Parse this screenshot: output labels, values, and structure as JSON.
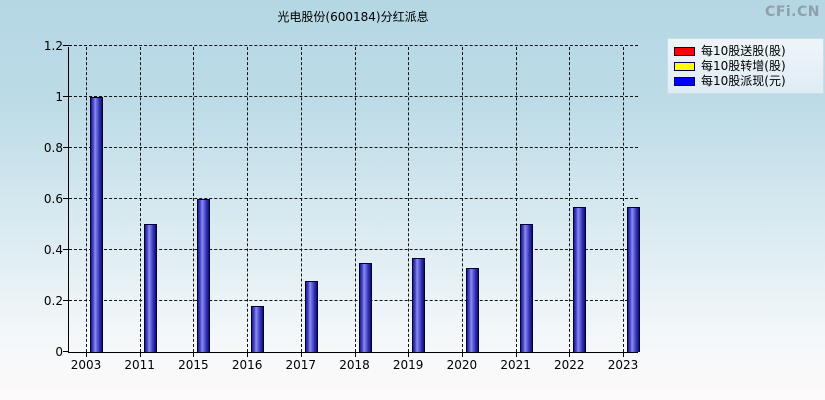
{
  "title": "光电股份(600184)分红派息",
  "watermark": "CFi.CN",
  "legend": [
    {
      "label": "每10股送股(股)",
      "color": "#ff0000"
    },
    {
      "label": "每10股转增(股)",
      "color": "#ffff00"
    },
    {
      "label": "每10股派现(元)",
      "color": "#0000ff"
    }
  ],
  "chart_data": {
    "type": "bar",
    "title": "光电股份(600184)分红派息",
    "categories": [
      "2003",
      "2011",
      "2015",
      "2016",
      "2017",
      "2018",
      "2019",
      "2020",
      "2021",
      "2022",
      "2023"
    ],
    "series": [
      {
        "name": "每10股送股(股)",
        "color": "#ff0000",
        "values": [
          0,
          0,
          0,
          0,
          0,
          0,
          0,
          0,
          0,
          0,
          0
        ]
      },
      {
        "name": "每10股转增(股)",
        "color": "#ffff00",
        "values": [
          0,
          0,
          0,
          0,
          0,
          0,
          0,
          0,
          0,
          0,
          0
        ]
      },
      {
        "name": "每10股派现(元)",
        "color": "#0000ff",
        "values": [
          1.0,
          0.5,
          0.6,
          0.18,
          0.28,
          0.35,
          0.37,
          0.33,
          0.5,
          0.57,
          0.57
        ]
      }
    ],
    "xlabel": "",
    "ylabel": "",
    "ylim": [
      0,
      1.2
    ],
    "ytick_interval": 0.2,
    "ytick_labels": [
      "0",
      "0.2",
      "0.4",
      "0.6",
      "0.8",
      "1",
      "1.2"
    ],
    "grid": true,
    "legend_position": "top-right",
    "bar_fill": "#3434c0",
    "background_top": "#b4d7e3",
    "background_bottom": "#fdfafa"
  }
}
